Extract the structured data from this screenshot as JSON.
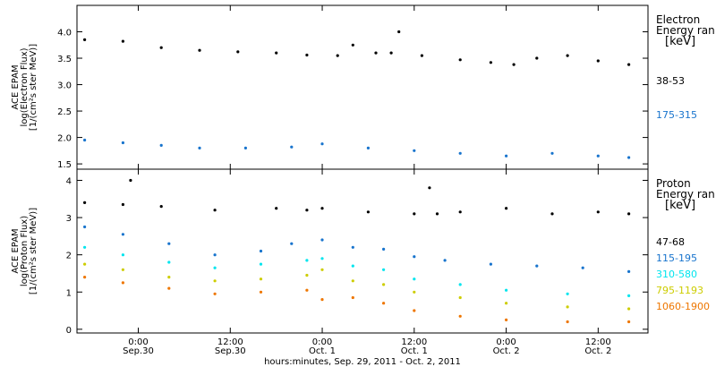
{
  "figure": {
    "xaxis_title": "hours:minutes, Sep. 29, 2011 - Oct. 2, 2011",
    "x_ticks": [
      {
        "time": "2011-09-30T00:00",
        "label1": "0:00",
        "label2": "Sep.30"
      },
      {
        "time": "2011-09-30T12:00",
        "label1": "12:00",
        "label2": "Sep.30"
      },
      {
        "time": "2011-10-01T00:00",
        "label1": "0:00",
        "label2": "Oct. 1"
      },
      {
        "time": "2011-10-01T12:00",
        "label1": "12:00",
        "label2": "Oct. 1"
      },
      {
        "time": "2011-10-02T00:00",
        "label1": "0:00",
        "label2": "Oct. 2"
      },
      {
        "time": "2011-10-02T12:00",
        "label1": "12:00",
        "label2": "Oct. 2"
      }
    ]
  },
  "chart_data": [
    {
      "type": "scatter",
      "panel": "electron",
      "ylabel_lines": [
        "ACE EPAM",
        "log(Electron Flux)",
        "[1/(cm²s ster MeV)]"
      ],
      "legend_title": [
        "Electron",
        "Energy ran",
        "[keV]"
      ],
      "xlim": [
        "2011-09-29T16:00",
        "2011-10-02T18:30"
      ],
      "ylim": [
        1.4,
        4.5
      ],
      "yticks": [
        1.5,
        2.0,
        2.5,
        3.0,
        3.5,
        4.0
      ],
      "grid": false,
      "legend_position": "right",
      "series": [
        {
          "name": "38-53",
          "color": "#000000",
          "x": [
            "2011-09-29T17:00",
            "2011-09-29T22:00",
            "2011-09-30T03:00",
            "2011-09-30T08:00",
            "2011-09-30T13:00",
            "2011-09-30T18:00",
            "2011-09-30T22:00",
            "2011-10-01T02:00",
            "2011-10-01T04:00",
            "2011-10-01T07:00",
            "2011-10-01T09:00",
            "2011-10-01T10:00",
            "2011-10-01T13:00",
            "2011-10-01T18:00",
            "2011-10-01T22:00",
            "2011-10-02T01:00",
            "2011-10-02T04:00",
            "2011-10-02T08:00",
            "2011-10-02T12:00",
            "2011-10-02T16:00"
          ],
          "y": [
            3.85,
            3.82,
            3.7,
            3.65,
            3.62,
            3.6,
            3.56,
            3.55,
            3.75,
            3.6,
            3.6,
            4.0,
            3.55,
            3.47,
            3.42,
            3.38,
            3.5,
            3.55,
            3.45,
            3.38
          ]
        },
        {
          "name": "175-315",
          "color": "#1874cd",
          "x": [
            "2011-09-29T17:00",
            "2011-09-29T22:00",
            "2011-09-30T03:00",
            "2011-09-30T08:00",
            "2011-09-30T14:00",
            "2011-09-30T20:00",
            "2011-10-01T00:00",
            "2011-10-01T06:00",
            "2011-10-01T12:00",
            "2011-10-01T18:00",
            "2011-10-02T00:00",
            "2011-10-02T06:00",
            "2011-10-02T12:00",
            "2011-10-02T16:00"
          ],
          "y": [
            1.95,
            1.9,
            1.85,
            1.8,
            1.8,
            1.82,
            1.88,
            1.8,
            1.75,
            1.7,
            1.65,
            1.7,
            1.65,
            1.62
          ]
        }
      ]
    },
    {
      "type": "scatter",
      "panel": "proton",
      "ylabel_lines": [
        "ACE EPAM",
        "log(Proton Flux)",
        "[1/(cm²s ster MeV)]"
      ],
      "legend_title": [
        "Proton",
        "Energy ran",
        "[keV]"
      ],
      "xlim": [
        "2011-09-29T16:00",
        "2011-10-02T18:30"
      ],
      "ylim": [
        -0.1,
        4.3
      ],
      "yticks": [
        0,
        1,
        2,
        3,
        4
      ],
      "grid": false,
      "legend_position": "right",
      "series": [
        {
          "name": "47-68",
          "color": "#000000",
          "x": [
            "2011-09-29T17:00",
            "2011-09-29T22:00",
            "2011-09-29T23:00",
            "2011-09-30T03:00",
            "2011-09-30T10:00",
            "2011-09-30T18:00",
            "2011-09-30T22:00",
            "2011-10-01T00:00",
            "2011-10-01T06:00",
            "2011-10-01T12:00",
            "2011-10-01T14:00",
            "2011-10-01T15:00",
            "2011-10-01T18:00",
            "2011-10-02T00:00",
            "2011-10-02T06:00",
            "2011-10-02T12:00",
            "2011-10-02T16:00"
          ],
          "y": [
            3.4,
            3.35,
            4.0,
            3.3,
            3.2,
            3.25,
            3.2,
            3.25,
            3.15,
            3.1,
            3.8,
            3.1,
            3.15,
            3.25,
            3.1,
            3.15,
            3.1
          ]
        },
        {
          "name": "115-195",
          "color": "#1874cd",
          "x": [
            "2011-09-29T17:00",
            "2011-09-29T22:00",
            "2011-09-30T04:00",
            "2011-09-30T10:00",
            "2011-09-30T16:00",
            "2011-09-30T20:00",
            "2011-10-01T00:00",
            "2011-10-01T04:00",
            "2011-10-01T08:00",
            "2011-10-01T12:00",
            "2011-10-01T16:00",
            "2011-10-01T22:00",
            "2011-10-02T04:00",
            "2011-10-02T10:00",
            "2011-10-02T16:00"
          ],
          "y": [
            2.75,
            2.55,
            2.3,
            2.0,
            2.1,
            2.3,
            2.4,
            2.2,
            2.15,
            1.95,
            1.85,
            1.75,
            1.7,
            1.65,
            1.55
          ]
        },
        {
          "name": "310-580",
          "color": "#00e5ee",
          "x": [
            "2011-09-29T17:00",
            "2011-09-29T22:00",
            "2011-09-30T04:00",
            "2011-09-30T10:00",
            "2011-09-30T16:00",
            "2011-09-30T22:00",
            "2011-10-01T00:00",
            "2011-10-01T04:00",
            "2011-10-01T08:00",
            "2011-10-01T12:00",
            "2011-10-01T18:00",
            "2011-10-02T00:00",
            "2011-10-02T08:00",
            "2011-10-02T16:00"
          ],
          "y": [
            2.2,
            2.0,
            1.8,
            1.65,
            1.75,
            1.85,
            1.9,
            1.7,
            1.6,
            1.35,
            1.2,
            1.05,
            0.95,
            0.9
          ]
        },
        {
          "name": "795-1193",
          "color": "#cdcd00",
          "x": [
            "2011-09-29T17:00",
            "2011-09-29T22:00",
            "2011-09-30T04:00",
            "2011-09-30T10:00",
            "2011-09-30T16:00",
            "2011-09-30T22:00",
            "2011-10-01T00:00",
            "2011-10-01T04:00",
            "2011-10-01T08:00",
            "2011-10-01T12:00",
            "2011-10-01T18:00",
            "2011-10-02T00:00",
            "2011-10-02T08:00",
            "2011-10-02T16:00"
          ],
          "y": [
            1.75,
            1.6,
            1.4,
            1.3,
            1.35,
            1.45,
            1.6,
            1.3,
            1.2,
            1.0,
            0.85,
            0.7,
            0.6,
            0.55
          ]
        },
        {
          "name": "1060-1900",
          "color": "#ee7600",
          "x": [
            "2011-09-29T17:00",
            "2011-09-29T22:00",
            "2011-09-30T04:00",
            "2011-09-30T10:00",
            "2011-09-30T16:00",
            "2011-09-30T22:00",
            "2011-10-01T00:00",
            "2011-10-01T04:00",
            "2011-10-01T08:00",
            "2011-10-01T12:00",
            "2011-10-01T18:00",
            "2011-10-02T00:00",
            "2011-10-02T08:00",
            "2011-10-02T16:00"
          ],
          "y": [
            1.4,
            1.25,
            1.1,
            0.95,
            1.0,
            1.05,
            0.8,
            0.85,
            0.7,
            0.5,
            0.35,
            0.25,
            0.2,
            0.2
          ]
        }
      ]
    }
  ]
}
